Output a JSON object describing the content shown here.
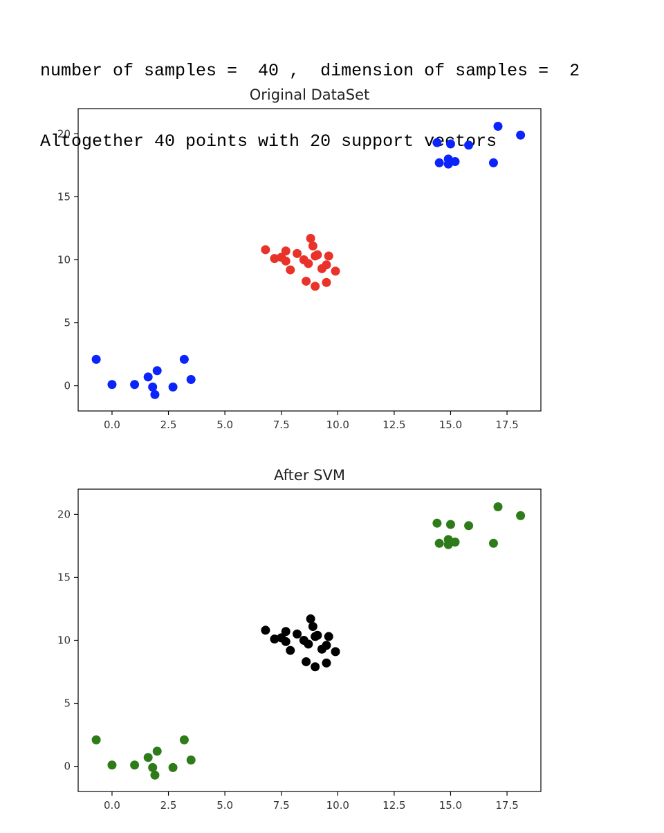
{
  "output": {
    "line1": "number of samples =  40 ,  dimension of samples =  2",
    "line2": "Altogether 40 points with 20 support vectors"
  },
  "colors": {
    "class_a": "#0b24fb",
    "class_b": "#e8322a",
    "svm_a": "#2e7b1a",
    "svm_b": "#000000"
  },
  "chart_data": [
    {
      "type": "scatter",
      "title": "Original DataSet",
      "xlabel": "",
      "ylabel": "",
      "xlim": [
        -1.5,
        19.0
      ],
      "ylim": [
        -2.0,
        22.0
      ],
      "xticks": [
        0.0,
        2.5,
        5.0,
        7.5,
        10.0,
        12.5,
        15.0,
        17.5
      ],
      "xtick_labels": [
        "0.0",
        "2.5",
        "5.0",
        "7.5",
        "10.0",
        "12.5",
        "15.0",
        "17.5"
      ],
      "yticks": [
        0,
        5,
        10,
        15,
        20
      ],
      "ytick_labels": [
        "0",
        "5",
        "10",
        "15",
        "20"
      ],
      "grid": false,
      "series": [
        {
          "color": "#0b24fb",
          "points": [
            [
              -0.7,
              2.1
            ],
            [
              0.0,
              0.1
            ],
            [
              1.0,
              0.1
            ],
            [
              1.6,
              0.7
            ],
            [
              1.8,
              -0.1
            ],
            [
              1.9,
              -0.7
            ],
            [
              2.0,
              1.2
            ],
            [
              2.7,
              -0.1
            ],
            [
              3.2,
              2.1
            ],
            [
              3.5,
              0.5
            ],
            [
              14.4,
              19.3
            ],
            [
              14.5,
              17.7
            ],
            [
              14.9,
              17.6
            ],
            [
              14.9,
              18.0
            ],
            [
              15.0,
              19.2
            ],
            [
              15.2,
              17.8
            ],
            [
              15.8,
              19.1
            ],
            [
              16.9,
              17.7
            ],
            [
              17.1,
              20.6
            ],
            [
              18.1,
              19.9
            ]
          ]
        },
        {
          "color": "#e8322a",
          "points": [
            [
              6.8,
              10.8
            ],
            [
              7.2,
              10.1
            ],
            [
              7.5,
              10.2
            ],
            [
              7.7,
              10.7
            ],
            [
              7.7,
              9.9
            ],
            [
              7.9,
              9.2
            ],
            [
              8.2,
              10.5
            ],
            [
              8.5,
              10.0
            ],
            [
              8.6,
              8.3
            ],
            [
              8.7,
              9.7
            ],
            [
              8.8,
              11.7
            ],
            [
              8.9,
              11.1
            ],
            [
              9.0,
              10.3
            ],
            [
              9.0,
              7.9
            ],
            [
              9.3,
              9.3
            ],
            [
              9.5,
              8.2
            ],
            [
              9.5,
              9.6
            ],
            [
              9.6,
              10.3
            ],
            [
              9.9,
              9.1
            ],
            [
              9.1,
              10.4
            ]
          ]
        }
      ]
    },
    {
      "type": "scatter",
      "title": "After SVM",
      "xlabel": "",
      "ylabel": "",
      "xlim": [
        -1.5,
        19.0
      ],
      "ylim": [
        -2.0,
        22.0
      ],
      "xticks": [
        0.0,
        2.5,
        5.0,
        7.5,
        10.0,
        12.5,
        15.0,
        17.5
      ],
      "xtick_labels": [
        "0.0",
        "2.5",
        "5.0",
        "7.5",
        "10.0",
        "12.5",
        "15.0",
        "17.5"
      ],
      "yticks": [
        0,
        5,
        10,
        15,
        20
      ],
      "ytick_labels": [
        "0",
        "5",
        "10",
        "15",
        "20"
      ],
      "grid": false,
      "series": [
        {
          "color": "#2e7b1a",
          "points": [
            [
              -0.7,
              2.1
            ],
            [
              0.0,
              0.1
            ],
            [
              1.0,
              0.1
            ],
            [
              1.6,
              0.7
            ],
            [
              1.8,
              -0.1
            ],
            [
              1.9,
              -0.7
            ],
            [
              2.0,
              1.2
            ],
            [
              2.7,
              -0.1
            ],
            [
              3.2,
              2.1
            ],
            [
              3.5,
              0.5
            ],
            [
              14.4,
              19.3
            ],
            [
              14.5,
              17.7
            ],
            [
              14.9,
              17.6
            ],
            [
              14.9,
              18.0
            ],
            [
              15.0,
              19.2
            ],
            [
              15.2,
              17.8
            ],
            [
              15.8,
              19.1
            ],
            [
              16.9,
              17.7
            ],
            [
              17.1,
              20.6
            ],
            [
              18.1,
              19.9
            ]
          ]
        },
        {
          "color": "#000000",
          "points": [
            [
              6.8,
              10.8
            ],
            [
              7.2,
              10.1
            ],
            [
              7.5,
              10.2
            ],
            [
              7.7,
              10.7
            ],
            [
              7.7,
              9.9
            ],
            [
              7.9,
              9.2
            ],
            [
              8.2,
              10.5
            ],
            [
              8.5,
              10.0
            ],
            [
              8.6,
              8.3
            ],
            [
              8.7,
              9.7
            ],
            [
              8.8,
              11.7
            ],
            [
              8.9,
              11.1
            ],
            [
              9.0,
              10.3
            ],
            [
              9.0,
              7.9
            ],
            [
              9.3,
              9.3
            ],
            [
              9.5,
              8.2
            ],
            [
              9.5,
              9.6
            ],
            [
              9.6,
              10.3
            ],
            [
              9.9,
              9.1
            ],
            [
              9.1,
              10.4
            ]
          ]
        }
      ]
    }
  ]
}
